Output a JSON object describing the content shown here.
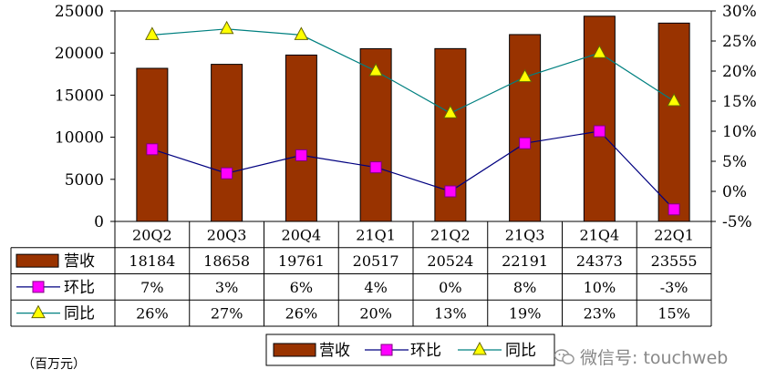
{
  "chart_data": {
    "type": "bar",
    "categories": [
      "20Q2",
      "20Q3",
      "20Q4",
      "21Q1",
      "21Q2",
      "21Q3",
      "21Q4",
      "22Q1"
    ],
    "series": [
      {
        "name": "营收",
        "kind": "bar",
        "axis": "left",
        "color": "#993300",
        "values": [
          18184,
          18658,
          19761,
          20517,
          20524,
          22191,
          24373,
          23555
        ]
      },
      {
        "name": "环比",
        "kind": "line",
        "axis": "right",
        "color": "#000080",
        "marker_color": "#ff00ff",
        "values": [
          7,
          3,
          6,
          4,
          0,
          8,
          10,
          -3
        ],
        "labels": [
          "7%",
          "3%",
          "6%",
          "4%",
          "0%",
          "8%",
          "10%",
          "-3%"
        ]
      },
      {
        "name": "同比",
        "kind": "line",
        "axis": "right",
        "color": "#008080",
        "marker_color": "#ffff00",
        "values": [
          26,
          27,
          26,
          20,
          13,
          19,
          23,
          15
        ],
        "labels": [
          "26%",
          "27%",
          "26%",
          "20%",
          "13%",
          "19%",
          "23%",
          "15%"
        ]
      }
    ],
    "y_left": {
      "lim": [
        0,
        25000
      ],
      "ticks": [
        "0",
        "5000",
        "10000",
        "15000",
        "20000",
        "25000"
      ]
    },
    "y_right": {
      "lim": [
        -5,
        30
      ],
      "ticks": [
        "-5%",
        "0%",
        "5%",
        "10%",
        "15%",
        "20%",
        "25%",
        "30%"
      ]
    },
    "unit_label": "（百万元）",
    "legend_position": "bottom",
    "grid": false
  },
  "watermark": "微信号: touchweb"
}
